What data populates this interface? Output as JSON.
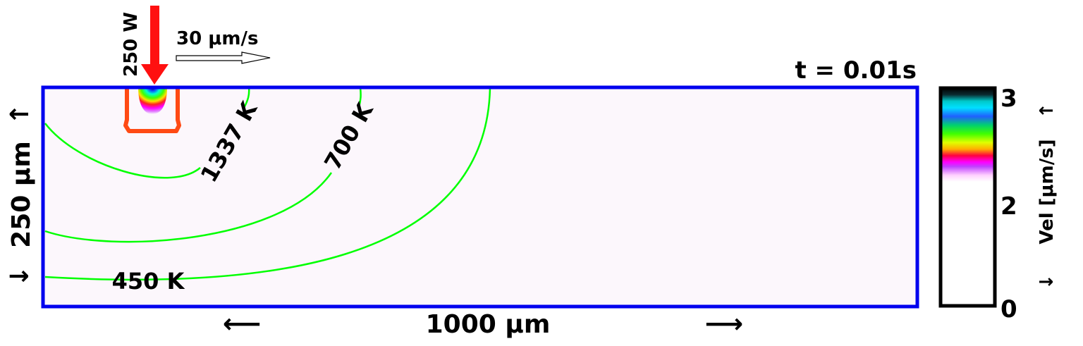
{
  "time_label": "t = 0.01s",
  "laser": {
    "power_label": "250 W",
    "beam_color": "#ff1010"
  },
  "scan": {
    "speed_label": "30 μm/s"
  },
  "domain": {
    "width_label": "1000 μm",
    "depth_label": "250 μm",
    "width_arrow_left": "⟵",
    "width_arrow_right": "⟶",
    "depth_arrow_up": "↑",
    "depth_arrow_down": "↓",
    "border_color": "#0000ee",
    "fill_color": "#fcf7fc"
  },
  "isotherms": {
    "color": "#00ff00",
    "labels": [
      "1337 K",
      "700 K",
      "450 K"
    ]
  },
  "melt_pool": {
    "outline_color": "#ff4a14"
  },
  "colorbar": {
    "label": "Vel [μm/s]",
    "arrow_up": "↑",
    "arrow_down": "↓",
    "ticks": [
      "3",
      "2",
      "0"
    ]
  }
}
